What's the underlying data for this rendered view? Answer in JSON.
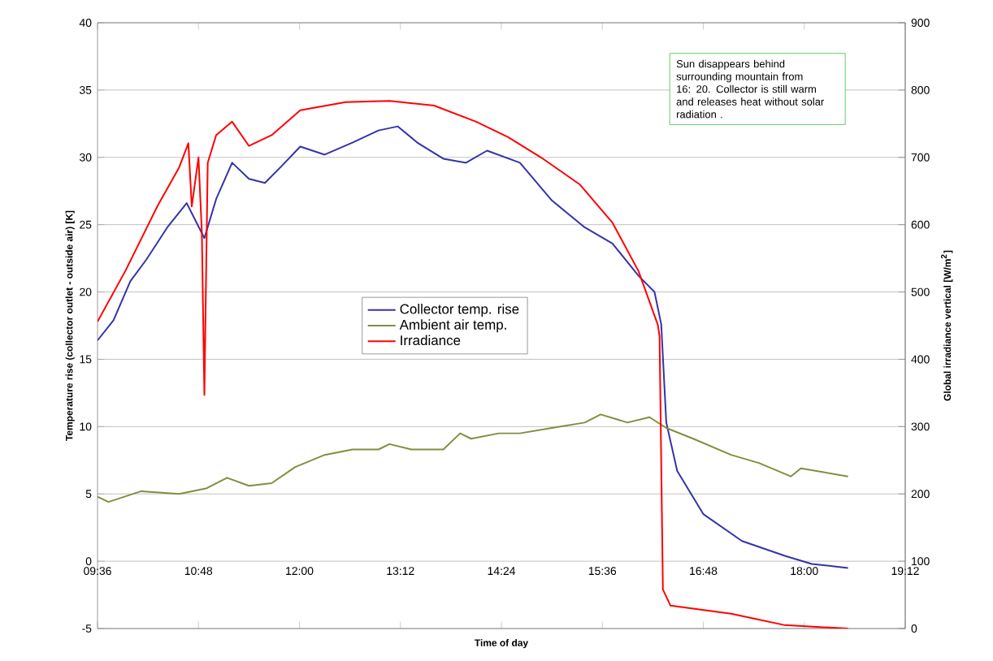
{
  "chart_data": {
    "type": "line",
    "xlabel": "Time of day",
    "ylabel": "Temperature rise (collector outlet - outside air) [K]",
    "y2label": "Global irradiance vertical [W/m$^{2}$]",
    "annotations": [
      "Sun disappears behind surrounding mountain from 16: 20. Collector is still warm and releases heat without solar radiation ."
    ],
    "xlim": [
      9.6,
      19.2
    ],
    "xticks": [
      {
        "value": 9.6,
        "label": "09:36"
      },
      {
        "value": 10.8,
        "label": "10:48"
      },
      {
        "value": 12.0,
        "label": "12:00"
      },
      {
        "value": 13.2,
        "label": "13:12"
      },
      {
        "value": 14.4,
        "label": "14:24"
      },
      {
        "value": 15.6,
        "label": "15:36"
      },
      {
        "value": 16.8,
        "label": "16:48"
      },
      {
        "value": 18.0,
        "label": "18:00"
      },
      {
        "value": 19.2,
        "label": "19:12"
      }
    ],
    "ylim": [
      -5,
      40
    ],
    "yticks": [
      -5,
      0,
      5,
      10,
      15,
      20,
      25,
      30,
      35,
      40
    ],
    "y2lim": [
      0,
      900
    ],
    "y2ticks": [
      0,
      100,
      200,
      300,
      400,
      500,
      600,
      700,
      800,
      900
    ],
    "grid": "y",
    "legend": "center",
    "series": [
      {
        "name": "Collector temp. rise",
        "color": "#3333aa",
        "x": [
          9.6,
          9.79,
          9.99,
          10.18,
          10.43,
          10.66,
          10.87,
          11.01,
          11.2,
          11.4,
          11.59,
          11.78,
          12.01,
          12.3,
          12.63,
          12.94,
          13.17,
          13.4,
          13.71,
          13.98,
          14.23,
          14.62,
          15.0,
          15.39,
          15.72,
          16.03,
          16.22,
          16.3,
          16.36,
          16.49,
          16.8,
          17.26,
          17.77,
          18.09,
          18.52
        ],
        "values": [
          16.4,
          17.9,
          20.8,
          22.4,
          24.8,
          26.6,
          24.0,
          26.9,
          29.6,
          28.4,
          28.1,
          29.3,
          30.8,
          30.2,
          31.1,
          32.0,
          32.3,
          31.1,
          29.9,
          29.6,
          30.5,
          29.6,
          26.8,
          24.8,
          23.6,
          21.2,
          20.0,
          17.6,
          10.3,
          6.7,
          3.5,
          1.5,
          0.4,
          -0.2,
          -0.5
        ]
      },
      {
        "name": "Ambient air temp.",
        "color": "#7f8f3f",
        "x": [
          9.6,
          9.73,
          10.12,
          10.57,
          10.89,
          11.14,
          11.4,
          11.67,
          11.95,
          12.3,
          12.63,
          12.94,
          13.07,
          13.33,
          13.71,
          13.91,
          14.04,
          14.37,
          14.62,
          15.0,
          15.39,
          15.58,
          15.9,
          16.16,
          16.36,
          16.68,
          17.13,
          17.46,
          17.84,
          17.96,
          18.52
        ],
        "values": [
          4.8,
          4.4,
          5.2,
          5.0,
          5.4,
          6.2,
          5.6,
          5.8,
          7.0,
          7.9,
          8.3,
          8.3,
          8.7,
          8.3,
          8.3,
          9.5,
          9.1,
          9.5,
          9.5,
          9.9,
          10.3,
          10.9,
          10.3,
          10.7,
          9.9,
          9.1,
          7.9,
          7.3,
          6.3,
          6.9,
          6.3
        ]
      },
      {
        "name": "Irradiance",
        "color": "#ff0000",
        "axis": "y2",
        "x": [
          9.6,
          9.93,
          10.31,
          10.57,
          10.68,
          10.72,
          10.8,
          10.84,
          10.87,
          10.91,
          11.01,
          11.2,
          11.4,
          11.67,
          12.01,
          12.55,
          13.07,
          13.6,
          14.1,
          14.48,
          14.87,
          15.33,
          15.72,
          16.03,
          16.26,
          16.28,
          16.32,
          16.41,
          17.13,
          17.77,
          18.52
        ],
        "values": [
          456,
          531,
          627,
          685,
          721,
          627,
          700,
          589,
          347,
          692,
          733,
          753,
          717,
          733,
          770,
          782,
          784,
          777,
          753,
          730,
          700,
          660,
          603,
          531,
          451,
          434,
          58,
          34,
          22,
          5,
          0
        ]
      }
    ]
  }
}
